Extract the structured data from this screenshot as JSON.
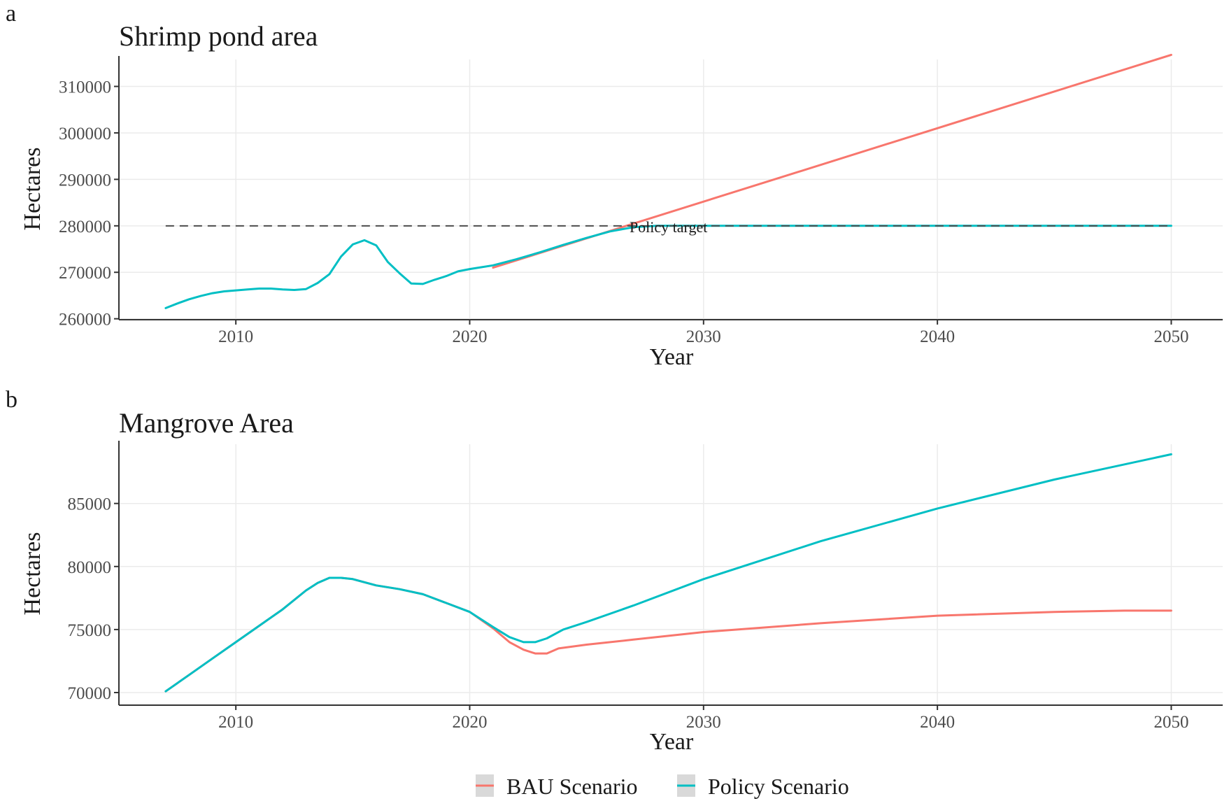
{
  "colors": {
    "bau": "#F8766D",
    "policy": "#00BFC4",
    "target_line": "#4d4d4d",
    "legend_key_bg": "#d9d9d9"
  },
  "legend": {
    "items": [
      {
        "label": "BAU Scenario",
        "color": "#F8766D"
      },
      {
        "label": "Policy Scenario",
        "color": "#00BFC4"
      }
    ]
  },
  "chart_data": [
    {
      "panel_label": "a",
      "type": "line",
      "title": "Shrimp pond area",
      "xlabel": "Year",
      "ylabel": "Hectares",
      "xlim": [
        2005,
        2052.2
      ],
      "ylim": [
        259800,
        315800
      ],
      "xticks": [
        2010,
        2020,
        2030,
        2040,
        2050
      ],
      "yticks": [
        260000,
        270000,
        280000,
        290000,
        300000,
        310000
      ],
      "ytick_labels": [
        "260000",
        "270000",
        "280000",
        "290000",
        "300000",
        "310000"
      ],
      "grid": true,
      "reference_line": {
        "y": 280000,
        "x": [
          2007,
          2050
        ],
        "style": "dashed",
        "label": "Policy target",
        "label_x": 2028.5
      },
      "series": [
        {
          "name": "BAU Scenario",
          "points": [
            [
              2021,
              271000
            ],
            [
              2050,
              316800
            ]
          ]
        },
        {
          "name": "Policy Scenario",
          "points": [
            [
              2007,
              262300
            ],
            [
              2007.5,
              263300
            ],
            [
              2008,
              264200
            ],
            [
              2008.5,
              264900
            ],
            [
              2009,
              265500
            ],
            [
              2009.5,
              265900
            ],
            [
              2010,
              266100
            ],
            [
              2010.5,
              266300
            ],
            [
              2011,
              266500
            ],
            [
              2011.5,
              266500
            ],
            [
              2012,
              266300
            ],
            [
              2012.5,
              266200
            ],
            [
              2013,
              266400
            ],
            [
              2013.5,
              267700
            ],
            [
              2014,
              269600
            ],
            [
              2014.5,
              273400
            ],
            [
              2015,
              276000
            ],
            [
              2015.5,
              276900
            ],
            [
              2016,
              275800
            ],
            [
              2016.5,
              272200
            ],
            [
              2017,
              269800
            ],
            [
              2017.5,
              267600
            ],
            [
              2018,
              267500
            ],
            [
              2018.5,
              268400
            ],
            [
              2019,
              269200
            ],
            [
              2019.5,
              270200
            ],
            [
              2020,
              270700
            ],
            [
              2021,
              271500
            ],
            [
              2022,
              272800
            ],
            [
              2023,
              274300
            ],
            [
              2024,
              275900
            ],
            [
              2025,
              277400
            ],
            [
              2026,
              278800
            ],
            [
              2027,
              279700
            ],
            [
              2028,
              280000
            ],
            [
              2050,
              280000
            ]
          ]
        }
      ]
    },
    {
      "panel_label": "b",
      "type": "line",
      "title": "Mangrove Area",
      "xlabel": "Year",
      "ylabel": "Hectares",
      "xlim": [
        2005,
        2052.2
      ],
      "ylim": [
        69000,
        89700
      ],
      "xticks": [
        2010,
        2020,
        2030,
        2040,
        2050
      ],
      "yticks": [
        70000,
        75000,
        80000,
        85000
      ],
      "ytick_labels": [
        "70000",
        "75000",
        "80000",
        "85000"
      ],
      "grid": true,
      "series": [
        {
          "name": "BAU Scenario",
          "points": [
            [
              2007,
              70100
            ],
            [
              2008,
              71400
            ],
            [
              2009,
              72700
            ],
            [
              2010,
              74000
            ],
            [
              2011,
              75300
            ],
            [
              2012,
              76600
            ],
            [
              2013,
              78100
            ],
            [
              2013.5,
              78700
            ],
            [
              2014,
              79100
            ],
            [
              2014.5,
              79100
            ],
            [
              2015,
              79000
            ],
            [
              2016,
              78500
            ],
            [
              2017,
              78200
            ],
            [
              2018,
              77800
            ],
            [
              2019,
              77100
            ],
            [
              2020,
              76400
            ],
            [
              2021,
              75100
            ],
            [
              2021.7,
              74000
            ],
            [
              2022.3,
              73400
            ],
            [
              2022.8,
              73100
            ],
            [
              2023.3,
              73100
            ],
            [
              2023.8,
              73500
            ],
            [
              2025,
              73800
            ],
            [
              2027,
              74200
            ],
            [
              2030,
              74800
            ],
            [
              2035,
              75500
            ],
            [
              2040,
              76100
            ],
            [
              2045,
              76400
            ],
            [
              2048,
              76500
            ],
            [
              2050,
              76500
            ]
          ]
        },
        {
          "name": "Policy Scenario",
          "points": [
            [
              2007,
              70100
            ],
            [
              2008,
              71400
            ],
            [
              2009,
              72700
            ],
            [
              2010,
              74000
            ],
            [
              2011,
              75300
            ],
            [
              2012,
              76600
            ],
            [
              2013,
              78100
            ],
            [
              2013.5,
              78700
            ],
            [
              2014,
              79100
            ],
            [
              2014.5,
              79100
            ],
            [
              2015,
              79000
            ],
            [
              2016,
              78500
            ],
            [
              2017,
              78200
            ],
            [
              2018,
              77800
            ],
            [
              2019,
              77100
            ],
            [
              2020,
              76400
            ],
            [
              2021,
              75200
            ],
            [
              2021.7,
              74400
            ],
            [
              2022.3,
              74000
            ],
            [
              2022.8,
              74000
            ],
            [
              2023.3,
              74300
            ],
            [
              2024,
              75000
            ],
            [
              2025,
              75600
            ],
            [
              2027,
              76900
            ],
            [
              2030,
              79000
            ],
            [
              2035,
              82000
            ],
            [
              2040,
              84600
            ],
            [
              2045,
              86900
            ],
            [
              2050,
              88900
            ]
          ]
        }
      ]
    }
  ]
}
